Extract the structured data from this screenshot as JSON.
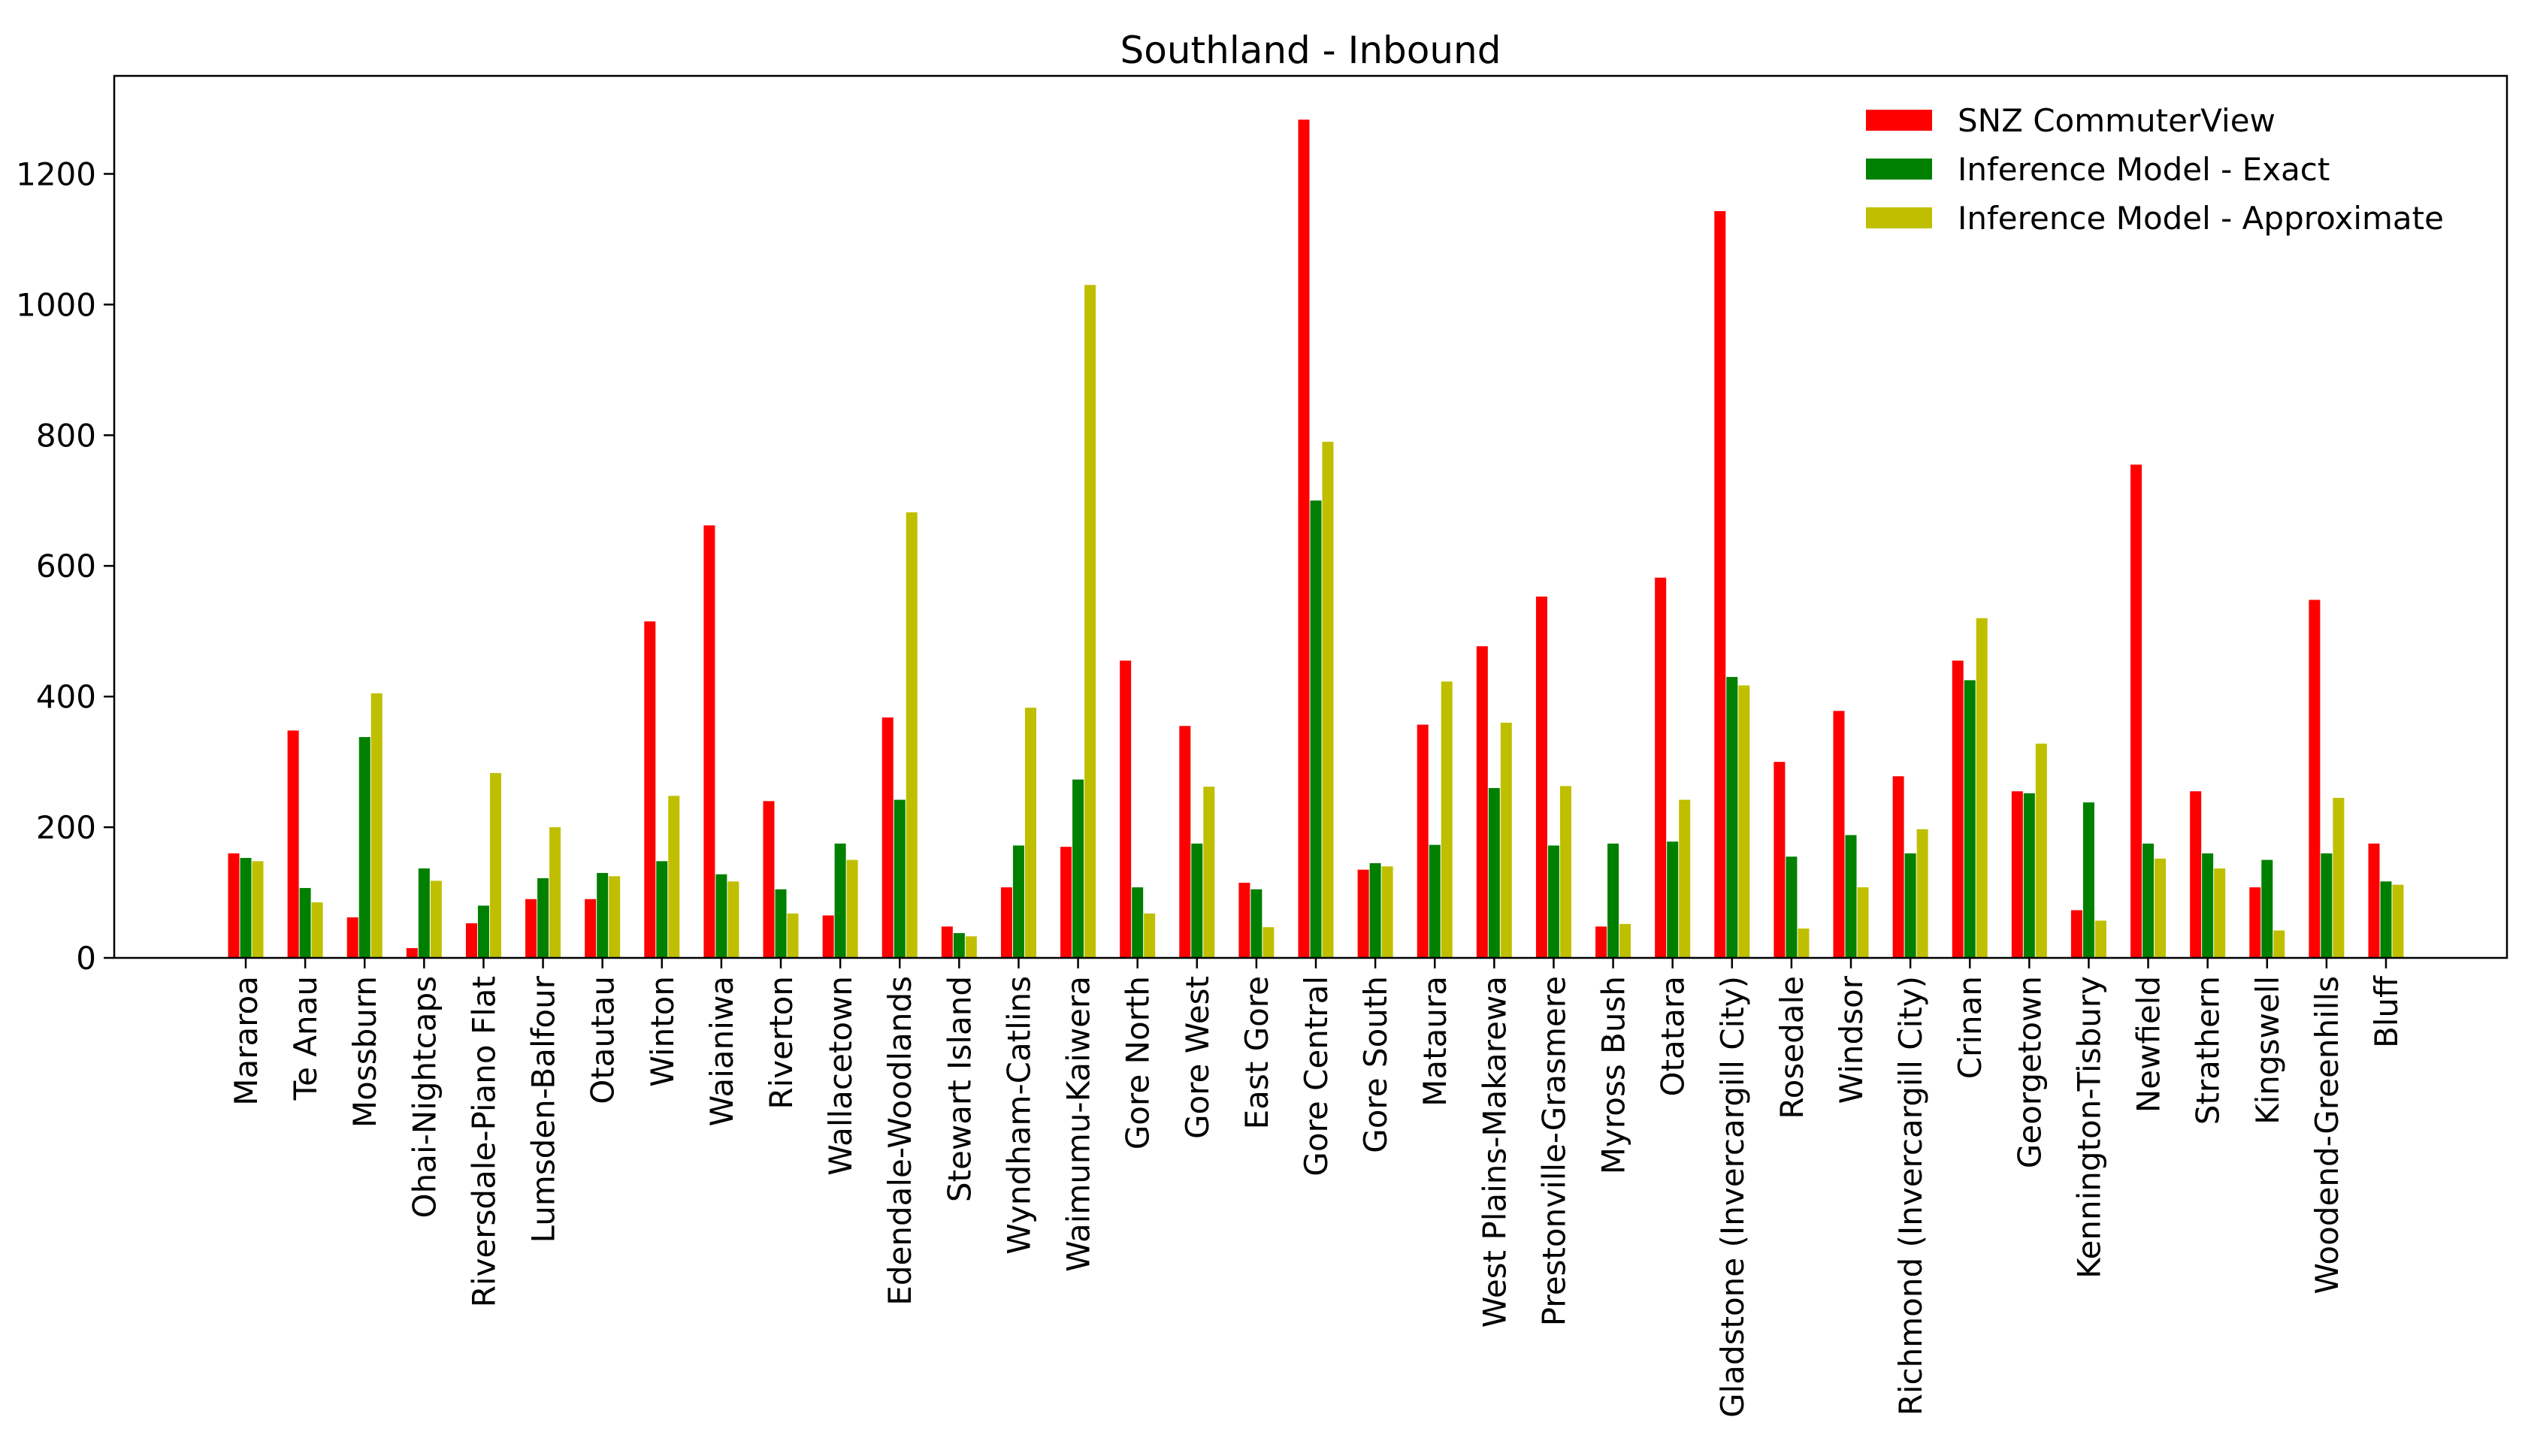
{
  "chart_data": {
    "type": "bar",
    "title": "Southland - Inbound",
    "xlabel": "",
    "ylabel": "",
    "ylim": [
      0,
      1350
    ],
    "yticks": [
      0,
      200,
      400,
      600,
      800,
      1000,
      1200
    ],
    "grid": false,
    "legend_position": "top-right",
    "categories": [
      "Mararoa",
      "Te Anau",
      "Mossburn",
      "Ohai-Nightcaps",
      "Riversdale-Piano Flat",
      "Lumsden-Balfour",
      "Otautau",
      "Winton",
      "Waianiwa",
      "Riverton",
      "Wallacetown",
      "Edendale-Woodlands",
      "Stewart Island",
      "Wyndham-Catlins",
      "Waimumu-Kaiwera",
      "Gore North",
      "Gore West",
      "East Gore",
      "Gore Central",
      "Gore South",
      "Mataura",
      "West Plains-Makarewa",
      "Prestonville-Grasmere",
      "Myross Bush",
      "Otatara",
      "Gladstone (Invercargill City)",
      "Rosedale",
      "Windsor",
      "Richmond (Invercargill City)",
      "Crinan",
      "Georgetown",
      "Kennington-Tisbury",
      "Newfield",
      "Strathern",
      "Kingswell",
      "Woodend-Greenhills",
      "Bluff"
    ],
    "series": [
      {
        "name": "SNZ CommuterView",
        "color": "#ff0000",
        "values": [
          160,
          348,
          62,
          15,
          53,
          90,
          90,
          515,
          662,
          240,
          65,
          368,
          48,
          108,
          170,
          455,
          355,
          115,
          1283,
          135,
          357,
          477,
          553,
          48,
          582,
          1143,
          300,
          378,
          278,
          455,
          255,
          73,
          755,
          255,
          108,
          548,
          175
        ]
      },
      {
        "name": "Inference Model - Exact",
        "color": "#008000",
        "values": [
          153,
          107,
          338,
          137,
          80,
          122,
          130,
          148,
          128,
          105,
          175,
          242,
          38,
          172,
          273,
          108,
          175,
          105,
          700,
          145,
          173,
          260,
          172,
          175,
          178,
          430,
          155,
          188,
          160,
          425,
          252,
          238,
          175,
          160,
          150,
          160,
          117
        ]
      },
      {
        "name": "Inference Model - Approximate",
        "color": "#bfbf00",
        "values": [
          148,
          85,
          405,
          118,
          283,
          200,
          125,
          248,
          117,
          68,
          150,
          682,
          33,
          383,
          1030,
          68,
          262,
          47,
          790,
          140,
          423,
          360,
          263,
          52,
          242,
          417,
          45,
          108,
          197,
          520,
          328,
          57,
          152,
          137,
          42,
          245,
          112
        ]
      }
    ]
  }
}
